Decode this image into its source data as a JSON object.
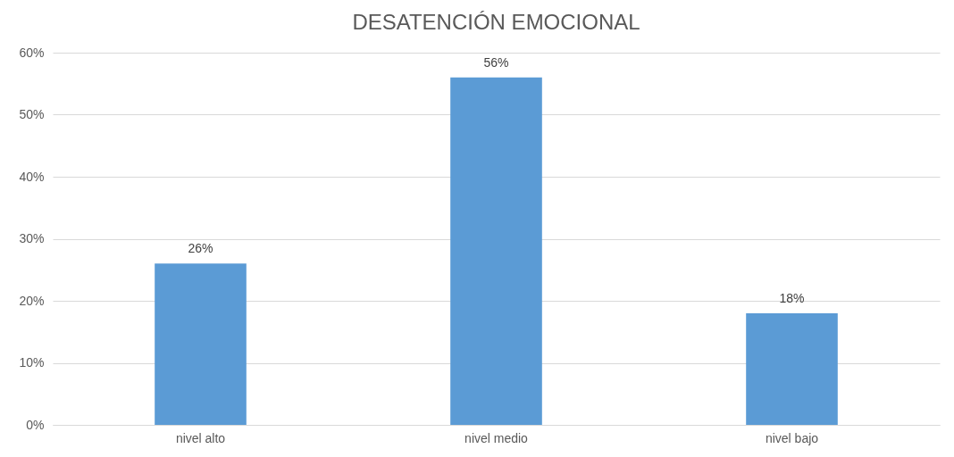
{
  "chart_data": {
    "type": "bar",
    "title": "DESATENCIÓN EMOCIONAL",
    "categories": [
      "nivel alto",
      "nivel medio",
      "nivel bajo"
    ],
    "values": [
      26,
      56,
      18
    ],
    "value_labels": [
      "26%",
      "56%",
      "18%"
    ],
    "color": "#5b9bd5",
    "ylim": [
      0,
      60
    ],
    "yticks": [
      {
        "value": 0,
        "label": "0%"
      },
      {
        "value": 10,
        "label": "10%"
      },
      {
        "value": 20,
        "label": "20%"
      },
      {
        "value": 30,
        "label": "30%"
      },
      {
        "value": 40,
        "label": "40%"
      },
      {
        "value": 50,
        "label": "50%"
      },
      {
        "value": 60,
        "label": "60%"
      }
    ],
    "grid": "y"
  }
}
